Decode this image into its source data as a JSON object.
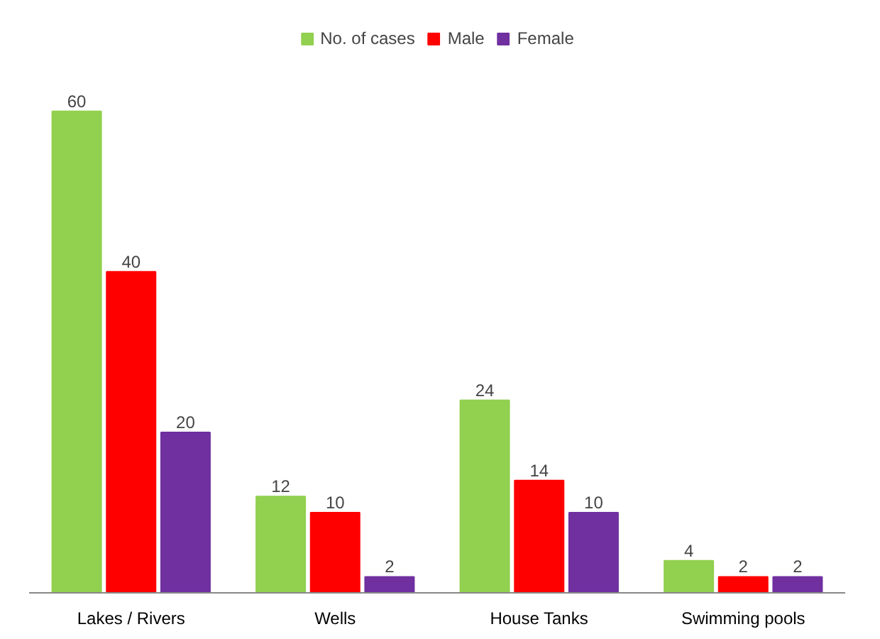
{
  "chart_data": {
    "type": "bar",
    "categories": [
      "Lakes / Rivers",
      "Wells",
      "House Tanks",
      "Swimming pools"
    ],
    "series": [
      {
        "name": "No. of cases",
        "color": "#92d050",
        "values": [
          60,
          12,
          24,
          4
        ]
      },
      {
        "name": "Male",
        "color": "#ff0000",
        "values": [
          40,
          10,
          14,
          2
        ]
      },
      {
        "name": "Female",
        "color": "#7030a0",
        "values": [
          20,
          2,
          10,
          2
        ]
      }
    ],
    "data_labels": true,
    "legend": "top",
    "grid": false
  }
}
